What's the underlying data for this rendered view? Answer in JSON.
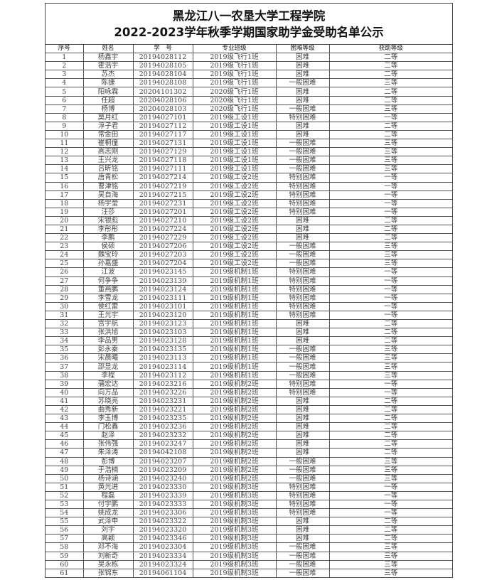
{
  "title": {
    "line1": "黑龙江八一农垦大学工程学院",
    "line2": "2022-2023学年秋季学期国家助学金受助名单公示"
  },
  "columns": [
    "序号",
    "姓名",
    "学　号",
    "专业班级",
    "困难等级",
    "获助等级"
  ],
  "rows": [
    [
      "1",
      "杨鑫宇",
      "20194028112",
      "2019级飞行1班",
      "困难",
      "二等"
    ],
    [
      "2",
      "霍浩宇",
      "20194028105",
      "2019级飞行1班",
      "困难",
      "二等"
    ],
    [
      "3",
      "苏杰",
      "20194028104",
      "2019级飞行1班",
      "困难",
      "二等"
    ],
    [
      "4",
      "陈捷",
      "20194028108",
      "2019级飞行1班",
      "一般困难",
      "三等"
    ],
    [
      "5",
      "阳咏霖",
      "20204101302",
      "2020级飞行1班",
      "困难",
      "二等"
    ],
    [
      "6",
      "任超",
      "20204028106",
      "2020级飞行1班",
      "困难",
      "二等"
    ],
    [
      "7",
      "杨博",
      "20204028103",
      "2020级飞行1班",
      "一般困难",
      "三等"
    ],
    [
      "8",
      "莫月红",
      "20194027101",
      "2019级工设1班",
      "特别困难",
      "一等"
    ],
    [
      "9",
      "淳子君",
      "20194027112",
      "2019级工设1班",
      "困难",
      "二等"
    ],
    [
      "10",
      "常金田",
      "20194027117",
      "2019级工设1班",
      "困难",
      "二等"
    ],
    [
      "11",
      "崔桐僮",
      "20194027131",
      "2019级工设1班",
      "一般困难",
      "三等"
    ],
    [
      "12",
      "高志刚",
      "20194027129",
      "2019级工设1班",
      "一般困难",
      "三等"
    ],
    [
      "13",
      "王兴龙",
      "20194027118",
      "2019级工设1班",
      "一般困难",
      "三等"
    ],
    [
      "14",
      "吕昕铭",
      "20194027111",
      "2019级工设1班",
      "一般困难",
      "三等"
    ],
    [
      "15",
      "唐青松",
      "20194027214",
      "2019级工设2班",
      "特别困难",
      "一等"
    ],
    [
      "16",
      "曹津铭",
      "20194027219",
      "2019级工设2班",
      "特别困难",
      "一等"
    ],
    [
      "17",
      "吴自海",
      "20194027215",
      "2019级工设2班",
      "特别困难",
      "一等"
    ],
    [
      "18",
      "杨宇莹",
      "20194027231",
      "2019级工设2班",
      "特别困难",
      "一等"
    ],
    [
      "19",
      "汪莎",
      "20194027201",
      "2019级工设2班",
      "特别困难",
      "一等"
    ],
    [
      "20",
      "宋银彪",
      "20194027210",
      "2019级工设2班",
      "困难",
      "二等"
    ],
    [
      "21",
      "李彤彤",
      "20194027224",
      "2019级工设2班",
      "困难",
      "二等"
    ],
    [
      "22",
      "李鹏",
      "20194027229",
      "2019级工设2班",
      "困难",
      "二等"
    ],
    [
      "23",
      "侯硕",
      "20194027206",
      "2019级工设2班",
      "一般困难",
      "三等"
    ],
    [
      "24",
      "魏宝玲",
      "20194027203",
      "2019级工设2班",
      "一般困难",
      "三等"
    ],
    [
      "25",
      "孙嘉盛",
      "20194027204",
      "2019级工设2班",
      "一般困难",
      "三等"
    ],
    [
      "26",
      "江波",
      "20194023145",
      "2019级机制1班",
      "特别困难",
      "一等"
    ],
    [
      "27",
      "何争争",
      "20194023139",
      "2019级机制1班",
      "特别困难",
      "一等"
    ],
    [
      "28",
      "董燕鹏",
      "20194023124",
      "2019级机制1班",
      "特别困难",
      "一等"
    ],
    [
      "29",
      "李雪龙",
      "20194023111",
      "2019级机制1班",
      "特别困难",
      "一等"
    ],
    [
      "30",
      "侯红雷",
      "20194023101",
      "2019级机制1班",
      "特别困难",
      "一等"
    ],
    [
      "31",
      "王光宇",
      "20194023120",
      "2019级机制1班",
      "特别困难",
      "一等"
    ],
    [
      "32",
      "宫宇航",
      "20194023123",
      "2019级机制1班",
      "困难",
      "二等"
    ],
    [
      "33",
      "张洪旭",
      "20194023103",
      "2019级机制1班",
      "困难",
      "二等"
    ],
    [
      "34",
      "李品男",
      "20194023128",
      "2019级机制1班",
      "困难",
      "二等"
    ],
    [
      "35",
      "彭永秦",
      "20194023135",
      "2019级机制1班",
      "一般困难",
      "三等"
    ],
    [
      "36",
      "宋晨曦",
      "20194023113",
      "2019级机制1班",
      "一般困难",
      "三等"
    ],
    [
      "37",
      "邵显龙",
      "20194023114",
      "2019级机制1班",
      "一般困难",
      "三等"
    ],
    [
      "38",
      "李程",
      "20194023112",
      "2019级机制1班",
      "一般困难",
      "三等"
    ],
    [
      "39",
      "蒲宏达",
      "20194023216",
      "2019级机制2班",
      "特别困难",
      "一等"
    ],
    [
      "40",
      "向万品",
      "20194023226",
      "2019级机制2班",
      "特别困难",
      "一等"
    ],
    [
      "41",
      "苏晓亮",
      "20194023231",
      "2019级机制2班",
      "困难",
      "二等"
    ],
    [
      "42",
      "曲秀新",
      "20194023221",
      "2019级机制2班",
      "困难",
      "二等"
    ],
    [
      "43",
      "李玉博",
      "20194023235",
      "2019级机制2班",
      "困难",
      "二等"
    ],
    [
      "44",
      "门松鑫",
      "20194023236",
      "2019级机制2班",
      "困难",
      "二等"
    ],
    [
      "45",
      "赵泽",
      "20194023232",
      "2019级机制2班",
      "困难",
      "二等"
    ],
    [
      "46",
      "张伟强",
      "20194023247",
      "2019级机制2班",
      "困难",
      "二等"
    ],
    [
      "47",
      "朱泽涛",
      "20194042108",
      "2019级机制2班",
      "困难",
      "二等"
    ],
    [
      "48",
      "彭博",
      "20194023207",
      "2019级机制2班",
      "一般困难",
      "三等"
    ],
    [
      "49",
      "于浩楠",
      "20194023209",
      "2019级机制2班",
      "一般困难",
      "三等"
    ],
    [
      "50",
      "杨诗涵",
      "20194023240",
      "2019级机制2班",
      "一般困难",
      "三等"
    ],
    [
      "51",
      "黄光进",
      "20194023330",
      "2019级机制3班",
      "特别困难",
      "一等"
    ],
    [
      "52",
      "程磊",
      "20194023339",
      "2019级机制3班",
      "特别困难",
      "一等"
    ],
    [
      "53",
      "付宇鹏",
      "20194023333",
      "2019级机制3班",
      "特别困难",
      "一等"
    ],
    [
      "54",
      "姚成龙",
      "20194023306",
      "2019级机制3班",
      "特别困难",
      "一等"
    ],
    [
      "55",
      "武泽申",
      "20194023322",
      "2019级机制3班",
      "困难",
      "二等"
    ],
    [
      "56",
      "刘宇",
      "20194023320",
      "2019级机制3班",
      "困难",
      "二等"
    ],
    [
      "57",
      "高颖",
      "20194023346",
      "2019级机制3班",
      "困难",
      "二等"
    ],
    [
      "58",
      "邓不海",
      "20194023304",
      "2019级机制3班",
      "一般困难",
      "三等"
    ],
    [
      "59",
      "刘新奇",
      "20194023334",
      "2019级机制3班",
      "一般困难",
      "三等"
    ],
    [
      "60",
      "吴永栋",
      "20194023324",
      "2019级机制3班",
      "一般困难",
      "三等"
    ],
    [
      "61",
      "张锦东",
      "20194061104",
      "2019级机制3班",
      "一般困难",
      "三等"
    ]
  ]
}
